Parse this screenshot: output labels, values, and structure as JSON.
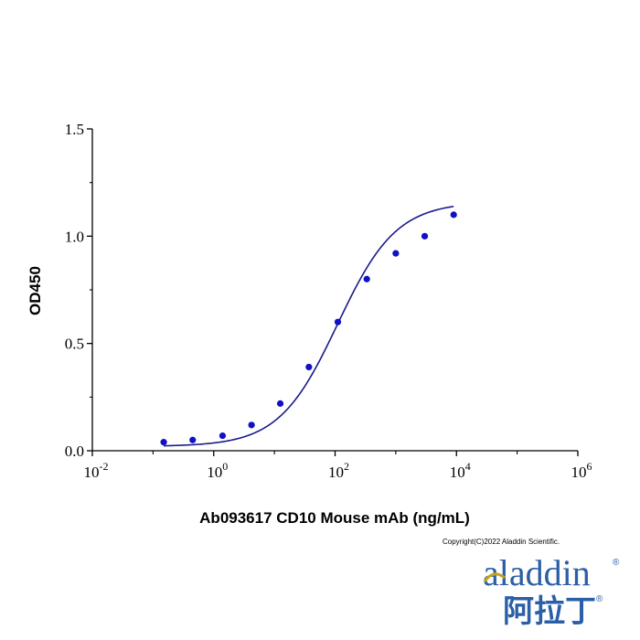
{
  "chart_data": {
    "type": "scatter",
    "title": "",
    "xlabel": "Ab093617 CD10 Mouse mAb (ng/mL)",
    "ylabel": "OD450",
    "x_scale": "log10",
    "xlim": [
      0.01,
      1000000
    ],
    "ylim": [
      0,
      1.5
    ],
    "x_ticks": [
      {
        "base": "10",
        "exp": "-2",
        "value": 0.01
      },
      {
        "base": "10",
        "exp": "0",
        "value": 1
      },
      {
        "base": "10",
        "exp": "2",
        "value": 100
      },
      {
        "base": "10",
        "exp": "4",
        "value": 10000
      },
      {
        "base": "10",
        "exp": "6",
        "value": 1000000
      }
    ],
    "y_ticks": [
      {
        "label": "0.0",
        "value": 0
      },
      {
        "label": "0.5",
        "value": 0.5
      },
      {
        "label": "1.0",
        "value": 1.0
      },
      {
        "label": "1.5",
        "value": 1.5
      }
    ],
    "grid": false,
    "series": [
      {
        "points": [
          {
            "x": 0.15,
            "y": 0.04
          },
          {
            "x": 0.45,
            "y": 0.05
          },
          {
            "x": 1.4,
            "y": 0.07
          },
          {
            "x": 4.2,
            "y": 0.12
          },
          {
            "x": 12.5,
            "y": 0.22
          },
          {
            "x": 37,
            "y": 0.39
          },
          {
            "x": 111,
            "y": 0.6
          },
          {
            "x": 333,
            "y": 0.8
          },
          {
            "x": 1000,
            "y": 0.92
          },
          {
            "x": 3000,
            "y": 1.0
          },
          {
            "x": 9000,
            "y": 1.1
          }
        ],
        "fit_curve": {
          "model": "4PL",
          "bottom": 0.02,
          "top": 1.16,
          "ec50": 110,
          "hill": 0.9,
          "x_range": [
            0.15,
            9000
          ]
        }
      }
    ],
    "colors": {
      "points": "#1010c8",
      "curve": "#1a1a8c",
      "axis": "#000000"
    }
  },
  "copyright": "Copyright(C)2022 Aladdin Scientific.",
  "logo": {
    "text": "aladdin",
    "chinese": "阿拉丁",
    "mark": "®",
    "color": "#2a5fa8",
    "accent": "#c8a21e"
  }
}
